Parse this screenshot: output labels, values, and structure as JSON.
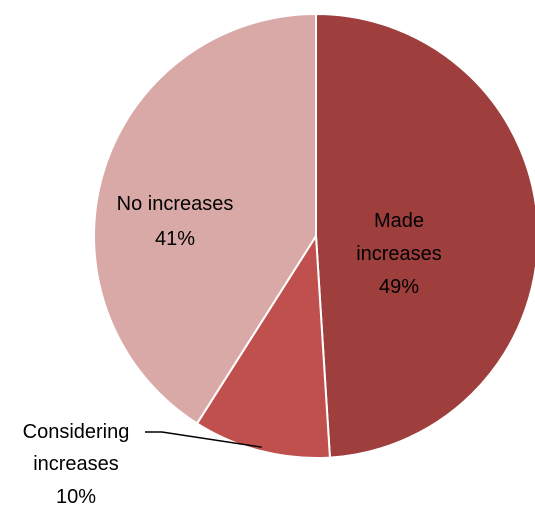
{
  "chart_data": {
    "type": "pie",
    "slices": [
      {
        "label": "Made increases",
        "percent_label": "49%",
        "value": 49,
        "color": "#9e3f3d"
      },
      {
        "label": "Considering increases",
        "percent_label": "10%",
        "value": 10,
        "color": "#c0504d"
      },
      {
        "label": "No increases",
        "percent_label": "41%",
        "value": 41,
        "color": "#d9a9a8"
      }
    ],
    "start_angle_deg": 0,
    "direction": "clockwise",
    "legend": "none",
    "data_labels": "category name and percentage"
  }
}
